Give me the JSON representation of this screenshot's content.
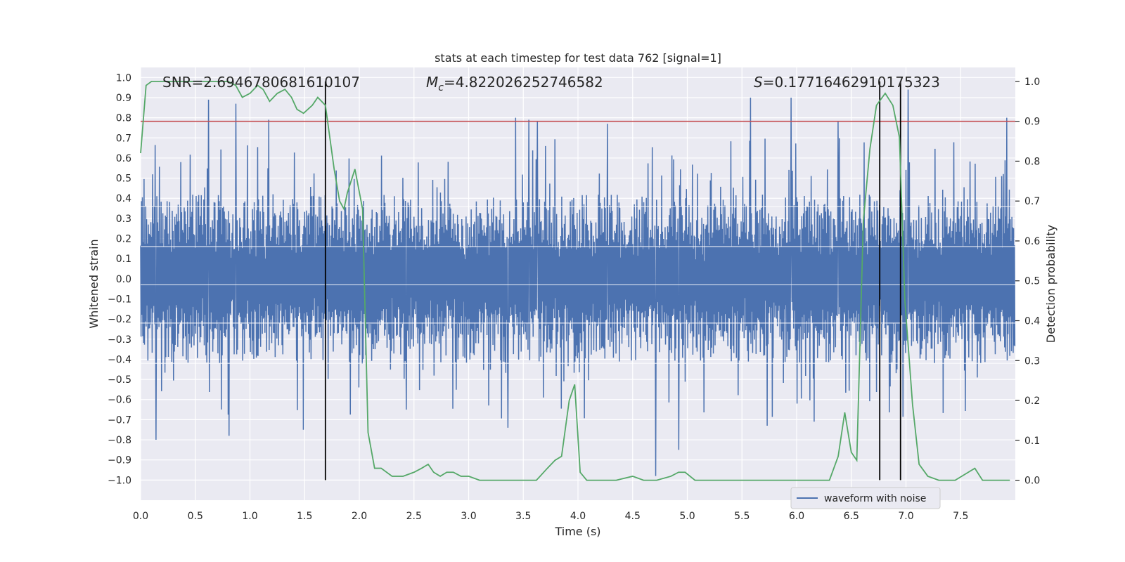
{
  "chart_data": {
    "type": "line",
    "title": "stats at each timestep for test data 762 [signal=1]",
    "xlabel": "Time (s)",
    "ylabel": "Whitened strain",
    "ylabel_right": "Detection probability",
    "xlim": [
      0.0,
      8.0
    ],
    "ylim": [
      -1.1,
      1.05
    ],
    "ylim_right": [
      -0.05,
      1.035
    ],
    "xticks": [
      0.0,
      0.5,
      1.0,
      1.5,
      2.0,
      2.5,
      3.0,
      3.5,
      4.0,
      4.5,
      5.0,
      5.5,
      6.0,
      6.5,
      7.0,
      7.5
    ],
    "xtick_labels": [
      "0.0",
      "0.5",
      "1.0",
      "1.5",
      "2.0",
      "2.5",
      "3.0",
      "3.5",
      "4.0",
      "4.5",
      "5.0",
      "5.5",
      "6.0",
      "6.5",
      "7.0",
      "7.5"
    ],
    "yticks": [
      1.0,
      0.9,
      0.8,
      0.7,
      0.6,
      0.5,
      0.4,
      0.3,
      0.2,
      0.1,
      0.0,
      -0.1,
      -0.2,
      -0.3,
      -0.4,
      -0.5,
      -0.6,
      -0.7,
      -0.8,
      -0.9,
      -1.0
    ],
    "ytick_labels": [
      "1.0",
      "0.9",
      "0.8",
      "0.7",
      "0.6",
      "0.5",
      "0.4",
      "0.3",
      "0.2",
      "0.1",
      "0.0",
      "-0.1",
      "-0.2",
      "-0.3",
      "-0.4",
      "-0.5",
      "-0.6",
      "-0.7",
      "-0.8",
      "-0.9",
      "-1.0"
    ],
    "yticks_right": [
      1.0,
      0.9,
      0.8,
      0.7,
      0.6,
      0.5,
      0.4,
      0.3,
      0.2,
      0.1,
      0.0
    ],
    "ytick_labels_right": [
      "1.0",
      "0.9",
      "0.8",
      "0.7",
      "0.6",
      "0.5",
      "0.4",
      "0.3",
      "0.2",
      "0.1",
      "0.0"
    ],
    "grid": true,
    "legend": {
      "position": "lower-right",
      "entries": [
        "waveform with noise"
      ]
    },
    "annotations": {
      "snr": "SNR=2.6946780681610107",
      "mc_symbol": "M",
      "mc_sub": "c",
      "mc_value": "=4.822026252746582",
      "s_symbol": "S",
      "s_value": "=0.17716462910175323"
    },
    "threshold_right": 0.9,
    "vertical_lines_x": [
      1.69,
      6.76,
      6.95
    ],
    "noise": {
      "name": "waveform with noise",
      "n_samples": 2048,
      "envelope_upper": 0.42,
      "envelope_lower": -0.42,
      "peaks": [
        {
          "x": 0.62,
          "y": 0.89
        },
        {
          "x": 0.87,
          "y": 0.87
        },
        {
          "x": 1.17,
          "y": 0.79
        },
        {
          "x": 3.43,
          "y": 0.8
        },
        {
          "x": 3.55,
          "y": 0.79
        },
        {
          "x": 3.63,
          "y": 0.78
        },
        {
          "x": 4.27,
          "y": 0.77
        },
        {
          "x": 5.58,
          "y": 0.9
        },
        {
          "x": 5.95,
          "y": 0.9
        },
        {
          "x": 6.38,
          "y": 0.78
        },
        {
          "x": 7.02,
          "y": 0.94
        },
        {
          "x": 7.92,
          "y": 0.8
        },
        {
          "x": 0.14,
          "y": -0.8
        },
        {
          "x": 0.81,
          "y": -0.78
        },
        {
          "x": 1.49,
          "y": -0.75
        },
        {
          "x": 3.36,
          "y": -0.74
        },
        {
          "x": 4.71,
          "y": -0.98
        },
        {
          "x": 4.92,
          "y": -0.85
        },
        {
          "x": 5.73,
          "y": -0.73
        },
        {
          "x": 6.16,
          "y": -0.71
        },
        {
          "x": 2.43,
          "y": -0.65
        }
      ],
      "color": "#4c72b0"
    },
    "series": [
      {
        "name": "",
        "axis": "right",
        "color": "#55a868",
        "x": [
          0.0,
          0.05,
          0.1,
          0.2,
          0.3,
          0.4,
          0.5,
          0.6,
          0.7,
          0.8,
          0.87,
          0.93,
          1.0,
          1.07,
          1.12,
          1.18,
          1.25,
          1.32,
          1.38,
          1.43,
          1.49,
          1.57,
          1.62,
          1.69,
          1.77,
          1.82,
          1.86,
          1.89,
          1.96,
          2.03,
          2.08,
          2.14,
          2.2,
          2.3,
          2.4,
          2.5,
          2.57,
          2.63,
          2.68,
          2.74,
          2.8,
          2.86,
          2.93,
          3.0,
          3.1,
          3.2,
          3.3,
          3.4,
          3.5,
          3.62,
          3.72,
          3.79,
          3.85,
          3.92,
          3.97,
          4.02,
          4.08,
          4.2,
          4.35,
          4.5,
          4.6,
          4.7,
          4.72,
          4.85,
          4.92,
          4.98,
          5.07,
          5.2,
          5.5,
          5.8,
          6.1,
          6.3,
          6.38,
          6.44,
          6.5,
          6.55,
          6.61,
          6.67,
          6.73,
          6.81,
          6.88,
          6.94,
          6.99,
          7.06,
          7.12,
          7.2,
          7.3,
          7.45,
          7.57,
          7.63,
          7.7,
          7.95
        ],
        "y": [
          0.82,
          0.99,
          1.0,
          1.0,
          1.0,
          1.0,
          1.0,
          1.0,
          1.0,
          1.0,
          0.99,
          0.96,
          0.97,
          0.99,
          0.98,
          0.95,
          0.97,
          0.98,
          0.96,
          0.93,
          0.92,
          0.94,
          0.96,
          0.94,
          0.78,
          0.7,
          0.68,
          0.72,
          0.78,
          0.68,
          0.12,
          0.03,
          0.03,
          0.01,
          0.01,
          0.02,
          0.03,
          0.04,
          0.02,
          0.01,
          0.02,
          0.02,
          0.01,
          0.01,
          0.0,
          0.0,
          0.0,
          0.0,
          0.0,
          0.0,
          0.03,
          0.05,
          0.06,
          0.2,
          0.24,
          0.02,
          0.0,
          0.0,
          0.0,
          0.01,
          0.0,
          0.0,
          0.0,
          0.01,
          0.02,
          0.02,
          0.0,
          0.0,
          0.0,
          0.0,
          0.0,
          0.0,
          0.06,
          0.17,
          0.07,
          0.05,
          0.65,
          0.83,
          0.94,
          0.97,
          0.94,
          0.86,
          0.45,
          0.19,
          0.04,
          0.01,
          0.0,
          0.0,
          0.02,
          0.03,
          0.0,
          0.0
        ]
      }
    ]
  }
}
